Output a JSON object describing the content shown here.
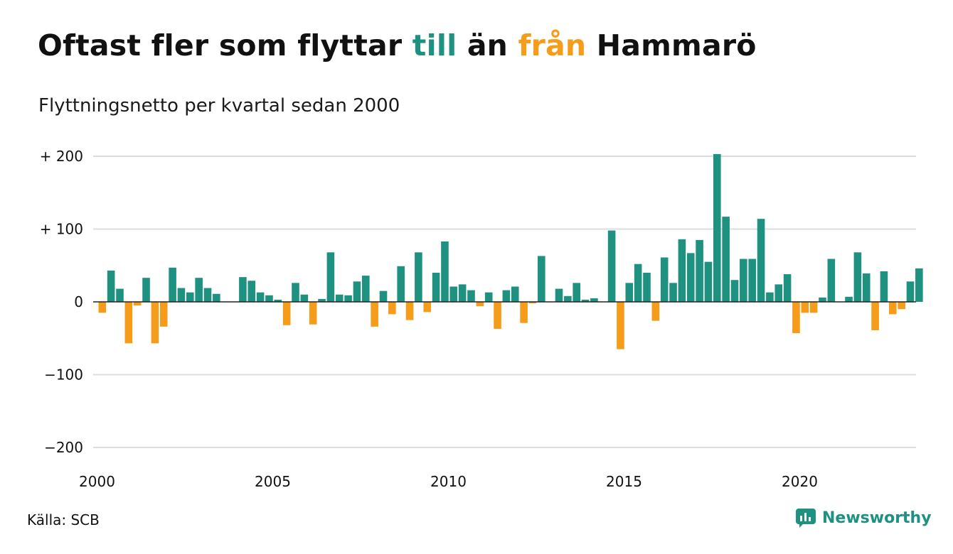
{
  "title": {
    "part1": "Oftast fler som flyttar ",
    "part2": "till",
    "part3": " än ",
    "part4": "från",
    "part5": " Hammarö"
  },
  "subtitle": "Flyttningsnetto per kvartal sedan 2000",
  "source": "Källa: SCB",
  "brand": {
    "name": "Newsworthy",
    "icon": "newsworthy-logo-icon"
  },
  "colors": {
    "positive": "#1f9181",
    "negative": "#f59c1a",
    "grid": "#dddddd",
    "zero": "#222222"
  },
  "chart_data": {
    "type": "bar",
    "x_start": "2000 Q1",
    "x_ticks": [
      "2000",
      "2005",
      "2010",
      "2015",
      "2020"
    ],
    "y_ticks": [
      {
        "value": 200,
        "label": "+ 200"
      },
      {
        "value": 100,
        "label": "+ 100"
      },
      {
        "value": 0,
        "label": "0"
      },
      {
        "value": -100,
        "label": "−100"
      },
      {
        "value": -200,
        "label": "−200"
      }
    ],
    "ylim": [
      -200,
      200
    ],
    "values": [
      -15,
      43,
      18,
      -57,
      -5,
      33,
      -57,
      -34,
      47,
      19,
      13,
      33,
      19,
      11,
      0,
      0,
      34,
      29,
      13,
      9,
      3,
      -32,
      26,
      10,
      -31,
      4,
      68,
      10,
      9,
      28,
      36,
      -34,
      15,
      -17,
      49,
      -25,
      68,
      -14,
      40,
      83,
      21,
      24,
      16,
      -6,
      13,
      -37,
      16,
      21,
      -29,
      -2,
      63,
      0,
      18,
      8,
      26,
      3,
      5,
      0,
      98,
      -65,
      26,
      52,
      40,
      -26,
      61,
      26,
      86,
      67,
      85,
      55,
      203,
      117,
      30,
      59,
      59,
      114,
      13,
      24,
      38,
      -43,
      -15,
      -15,
      6,
      59,
      0,
      7,
      68,
      39,
      -39,
      42,
      -17,
      -10,
      28,
      46
    ]
  }
}
